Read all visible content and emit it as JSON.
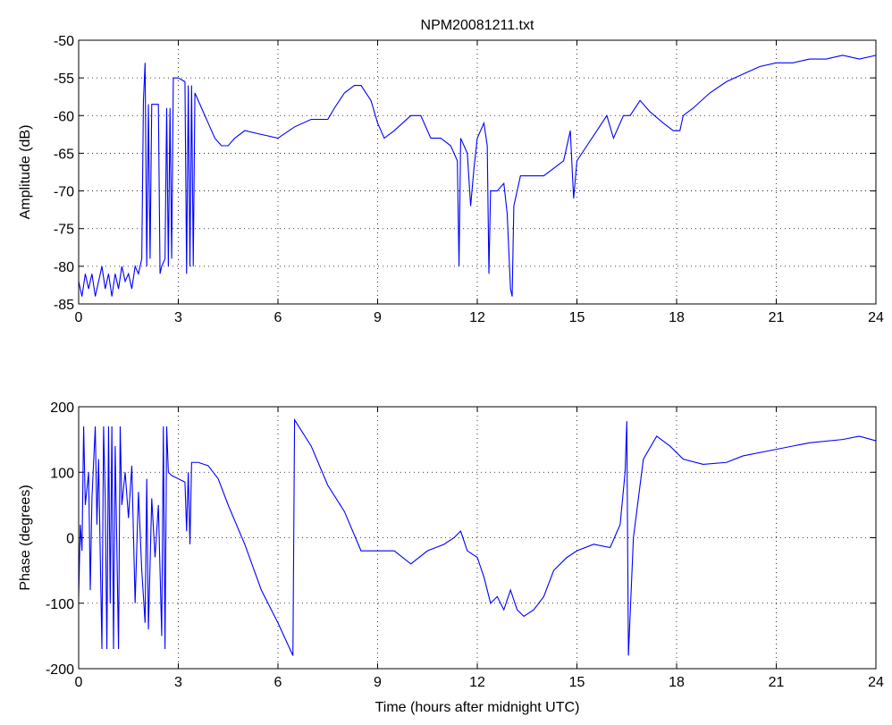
{
  "chart_data": [
    {
      "type": "line",
      "title": "NPM20081211.txt",
      "ylabel": "Amplitude (dB)",
      "x": [
        0,
        0.1,
        0.2,
        0.3,
        0.4,
        0.5,
        0.6,
        0.7,
        0.8,
        0.9,
        1.0,
        1.1,
        1.2,
        1.3,
        1.4,
        1.5,
        1.6,
        1.7,
        1.8,
        1.9,
        1.95,
        2.0,
        2.05,
        2.1,
        2.15,
        2.2,
        2.4,
        2.45,
        2.5,
        2.6,
        2.65,
        2.7,
        2.75,
        2.8,
        2.85,
        3.0,
        3.2,
        3.25,
        3.3,
        3.35,
        3.4,
        3.45,
        3.5,
        3.7,
        3.9,
        4.1,
        4.3,
        4.5,
        4.7,
        5.0,
        5.5,
        6.0,
        6.5,
        7.0,
        7.5,
        7.7,
        8.0,
        8.3,
        8.5,
        8.8,
        9.0,
        9.2,
        9.5,
        10.0,
        10.3,
        10.6,
        10.9,
        11.2,
        11.4,
        11.45,
        11.5,
        11.7,
        11.8,
        11.9,
        12.0,
        12.2,
        12.3,
        12.35,
        12.4,
        12.6,
        12.8,
        12.9,
        13.0,
        13.05,
        13.1,
        13.3,
        13.6,
        14.0,
        14.3,
        14.6,
        14.8,
        14.9,
        15.0,
        15.3,
        15.6,
        15.9,
        16.1,
        16.4,
        16.6,
        16.9,
        17.2,
        17.6,
        17.9,
        18.1,
        18.2,
        18.5,
        19.0,
        19.5,
        20.0,
        20.5,
        21.0,
        21.5,
        22.0,
        22.5,
        23.0,
        23.5,
        24.0
      ],
      "series": [
        {
          "color": "#0000ff",
          "values": [
            -82,
            -84,
            -81,
            -83,
            -81,
            -84,
            -82,
            -80,
            -83,
            -81,
            -84,
            -81,
            -83,
            -80,
            -82,
            -81,
            -83,
            -80,
            -81,
            -79,
            -58,
            -53,
            -80,
            -58.5,
            -79,
            -58.5,
            -58.5,
            -81,
            -80,
            -79,
            -59,
            -80,
            -59,
            -79,
            -55,
            -55,
            -55.5,
            -81,
            -56,
            -80,
            -56,
            -80,
            -57,
            -59,
            -61,
            -63,
            -64,
            -64,
            -63,
            -62,
            -62.5,
            -63,
            -61.5,
            -60.5,
            -60.5,
            -59,
            -57,
            -56,
            -56,
            -58,
            -61,
            -63,
            -62,
            -60,
            -60,
            -63,
            -63,
            -64,
            -66,
            -80,
            -63,
            -65,
            -72,
            -67,
            -63,
            -61,
            -64,
            -81,
            -70,
            -70,
            -69,
            -73,
            -83,
            -84,
            -72,
            -68,
            -68,
            -68,
            -67,
            -66,
            -62,
            -71,
            -66,
            -64,
            -62,
            -60,
            -63,
            -60,
            -60,
            -58,
            -59.5,
            -61,
            -62,
            -62,
            -60,
            -59,
            -57,
            -55.5,
            -54.5,
            -53.5,
            -53,
            -53,
            -52.5,
            -52.5,
            -52,
            -52.5,
            -52
          ]
        }
      ],
      "xlim": [
        0,
        24
      ],
      "xticks": [
        0,
        3,
        6,
        9,
        12,
        15,
        18,
        21,
        24
      ],
      "ylim": [
        -85,
        -50
      ],
      "yticks": [
        -85,
        -80,
        -75,
        -70,
        -65,
        -60,
        -55,
        -50
      ],
      "grid": true
    },
    {
      "type": "line",
      "ylabel": "Phase (degrees)",
      "xlabel": "Time (hours after midnight UTC)",
      "x": [
        0,
        0.05,
        0.1,
        0.15,
        0.2,
        0.3,
        0.35,
        0.4,
        0.5,
        0.55,
        0.6,
        0.7,
        0.75,
        0.8,
        0.85,
        0.9,
        0.95,
        1.0,
        1.05,
        1.1,
        1.2,
        1.25,
        1.3,
        1.4,
        1.5,
        1.6,
        1.7,
        1.8,
        1.9,
        2.0,
        2.05,
        2.1,
        2.2,
        2.3,
        2.4,
        2.5,
        2.55,
        2.6,
        2.65,
        2.7,
        2.8,
        3.0,
        3.2,
        3.25,
        3.3,
        3.35,
        3.4,
        3.6,
        3.9,
        4.2,
        4.5,
        5.0,
        5.5,
        6.0,
        6.45,
        6.5,
        7.0,
        7.5,
        8.0,
        8.5,
        9.0,
        9.5,
        10.0,
        10.5,
        11.0,
        11.3,
        11.5,
        11.7,
        12.0,
        12.2,
        12.4,
        12.6,
        12.8,
        13.0,
        13.2,
        13.4,
        13.7,
        14.0,
        14.3,
        14.7,
        15.0,
        15.5,
        16.0,
        16.3,
        16.45,
        16.5,
        16.55,
        16.7,
        17.0,
        17.4,
        17.8,
        18.2,
        18.8,
        19.5,
        20.0,
        21.0,
        22.0,
        23.0,
        23.5,
        24.0
      ],
      "series": [
        {
          "color": "#0000ff",
          "values": [
            -90,
            20,
            -20,
            170,
            50,
            100,
            -80,
            60,
            170,
            20,
            120,
            -170,
            170,
            60,
            -170,
            170,
            -100,
            170,
            -170,
            140,
            -170,
            170,
            50,
            100,
            30,
            110,
            -100,
            70,
            -50,
            -130,
            90,
            -140,
            60,
            -30,
            50,
            -150,
            170,
            -170,
            170,
            100,
            95,
            90,
            85,
            10,
            100,
            -10,
            115,
            115,
            110,
            90,
            50,
            -10,
            -80,
            -130,
            -180,
            180,
            140,
            80,
            40,
            -20,
            -20,
            -20,
            -40,
            -20,
            -10,
            0,
            10,
            -20,
            -30,
            -60,
            -100,
            -90,
            -110,
            -80,
            -110,
            -120,
            -110,
            -90,
            -50,
            -30,
            -20,
            -10,
            -15,
            20,
            100,
            178,
            -180,
            0,
            120,
            155,
            140,
            120,
            112,
            115,
            125,
            135,
            145,
            150,
            155,
            148
          ]
        }
      ],
      "xlim": [
        0,
        24
      ],
      "xticks": [
        0,
        3,
        6,
        9,
        12,
        15,
        18,
        21,
        24
      ],
      "ylim": [
        -200,
        200
      ],
      "yticks": [
        -200,
        -100,
        0,
        100,
        200
      ],
      "grid": true
    }
  ]
}
